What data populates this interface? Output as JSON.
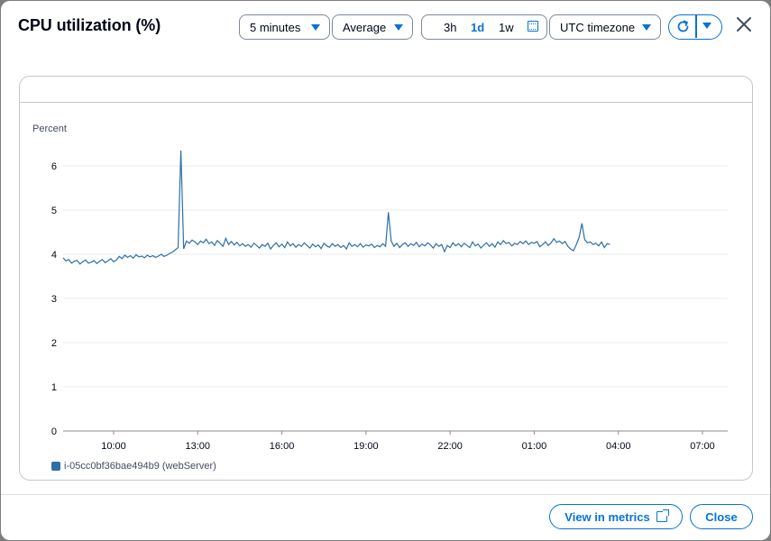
{
  "dialog": {
    "title": "CPU utilization (%)",
    "period": "5 minutes",
    "statistic": "Average",
    "ranges": [
      "3h",
      "1d",
      "1w"
    ],
    "selected_range": "1d",
    "timezone": "UTC timezone",
    "footer": {
      "view_in_metrics": "View in metrics",
      "close": "Close"
    }
  },
  "colors": {
    "accent": "#0972d3",
    "series": "#2e6fa8"
  },
  "chart_data": {
    "type": "line",
    "ylabel": "Percent",
    "ylim": [
      0,
      6
    ],
    "yticks": [
      "0",
      "1",
      "2",
      "3",
      "4",
      "5",
      "6"
    ],
    "xticks": [
      "10:00",
      "13:00",
      "16:00",
      "19:00",
      "22:00",
      "01:00",
      "04:00",
      "07:00"
    ],
    "xtick_hours": [
      10,
      13,
      16,
      19,
      22,
      25,
      28,
      31
    ],
    "xrange_hours": [
      8.2,
      31.9
    ],
    "grid": true,
    "legend_position": "bottom-left",
    "series": [
      {
        "name": "i-05cc0bf36bae494b9 (webServer)",
        "start_hour": 8.2,
        "step_hours": 0.1,
        "values": [
          3.92,
          3.85,
          3.88,
          3.8,
          3.84,
          3.86,
          3.78,
          3.83,
          3.87,
          3.8,
          3.82,
          3.86,
          3.79,
          3.84,
          3.88,
          3.81,
          3.85,
          3.9,
          3.83,
          3.87,
          3.95,
          3.9,
          3.98,
          3.93,
          3.97,
          3.91,
          3.99,
          3.94,
          3.96,
          3.92,
          3.98,
          3.94,
          3.97,
          3.93,
          3.96,
          4.0,
          3.95,
          3.98,
          4.02,
          4.05,
          4.1,
          4.15,
          6.35,
          4.12,
          4.3,
          4.25,
          4.32,
          4.28,
          4.22,
          4.3,
          4.26,
          4.34,
          4.24,
          4.28,
          4.2,
          4.31,
          4.25,
          4.18,
          4.36,
          4.22,
          4.29,
          4.21,
          4.27,
          4.19,
          4.24,
          4.18,
          4.22,
          4.16,
          4.25,
          4.2,
          4.14,
          4.22,
          4.18,
          4.25,
          4.12,
          4.2,
          4.26,
          4.17,
          4.23,
          4.15,
          4.28,
          4.19,
          4.24,
          4.16,
          4.22,
          4.18,
          4.26,
          4.2,
          4.14,
          4.23,
          4.17,
          4.21,
          4.13,
          4.25,
          4.19,
          4.16,
          4.24,
          4.18,
          4.22,
          4.15,
          4.2,
          4.12,
          4.26,
          4.18,
          4.22,
          4.17,
          4.24,
          4.16,
          4.21,
          4.19,
          4.23,
          4.15,
          4.2,
          4.17,
          4.24,
          4.18,
          4.95,
          4.3,
          4.18,
          4.25,
          4.15,
          4.22,
          4.26,
          4.18,
          4.24,
          4.2,
          4.27,
          4.17,
          4.23,
          4.19,
          4.26,
          4.21,
          4.14,
          4.24,
          4.18,
          4.22,
          4.06,
          4.2,
          4.15,
          4.26,
          4.19,
          4.24,
          4.17,
          4.25,
          4.2,
          4.15,
          4.28,
          4.19,
          4.23,
          4.14,
          4.21,
          4.26,
          4.18,
          4.24,
          4.16,
          4.28,
          4.22,
          4.31,
          4.24,
          4.27,
          4.19,
          4.25,
          4.22,
          4.29,
          4.24,
          4.3,
          4.22,
          4.27,
          4.25,
          4.29,
          4.17,
          4.22,
          4.28,
          4.2,
          4.26,
          4.35,
          4.27,
          4.3,
          4.24,
          4.29,
          4.18,
          4.12,
          4.08,
          4.22,
          4.38,
          4.7,
          4.33,
          4.26,
          4.28,
          4.22,
          4.25,
          4.19,
          4.28,
          4.15,
          4.24,
          4.22
        ]
      }
    ]
  }
}
